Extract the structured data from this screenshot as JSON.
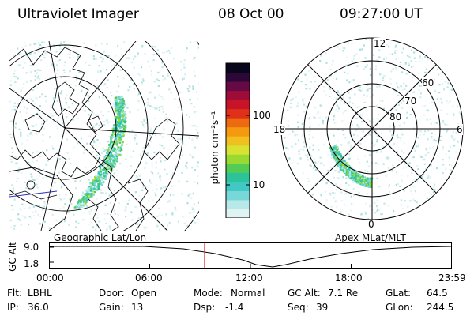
{
  "header": {
    "instrument": "Ultraviolet Imager",
    "date": "08 Oct 00",
    "time": "09:27:00 UT"
  },
  "left_panel": {
    "label": "Geographic Lat/Lon"
  },
  "right_panel": {
    "label": "Apex MLat/MLT",
    "mlt_labels": {
      "top": "12",
      "left": "18",
      "right": "6",
      "bottom": "0"
    },
    "lat_labels": [
      "60",
      "70",
      "80"
    ]
  },
  "colorbar": {
    "unit_label": "photon cm⁻²s⁻¹",
    "tick_labels": [
      "100",
      "10"
    ],
    "colors": [
      "#dff3f3",
      "#b7e9e9",
      "#78d8d8",
      "#3fc8c4",
      "#2cc39a",
      "#53cc53",
      "#9ad832",
      "#d8e232",
      "#f0c020",
      "#f59a10",
      "#ec6a10",
      "#e03018",
      "#c81428",
      "#a00c38",
      "#660a46",
      "#2c0838",
      "#08061a"
    ]
  },
  "timeline": {
    "axis_label": "GC Alt",
    "y_ticks": [
      "9.0",
      "1.8"
    ],
    "x_ticks": [
      "00:00",
      "06:00",
      "12:00",
      "18:00",
      "23:59"
    ],
    "marker_color": "#e02020"
  },
  "info": {
    "row1": [
      {
        "key": "Flt:",
        "value": "LBHL"
      },
      {
        "key": "Door:",
        "value": "Open"
      },
      {
        "key": "Mode:",
        "value": "Normal"
      },
      {
        "key": "GC Alt:",
        "value": "7.1 Re"
      },
      {
        "key": "GLat:",
        "value": "64.5"
      }
    ],
    "row2": [
      {
        "key": "IP:",
        "value": "36.0"
      },
      {
        "key": "Gain:",
        "value": "13"
      },
      {
        "key": "Dsp:",
        "value": "-1.4"
      },
      {
        "key": "Seq:",
        "value": "39"
      },
      {
        "key": "GLon:",
        "value": "244.5"
      }
    ]
  }
}
